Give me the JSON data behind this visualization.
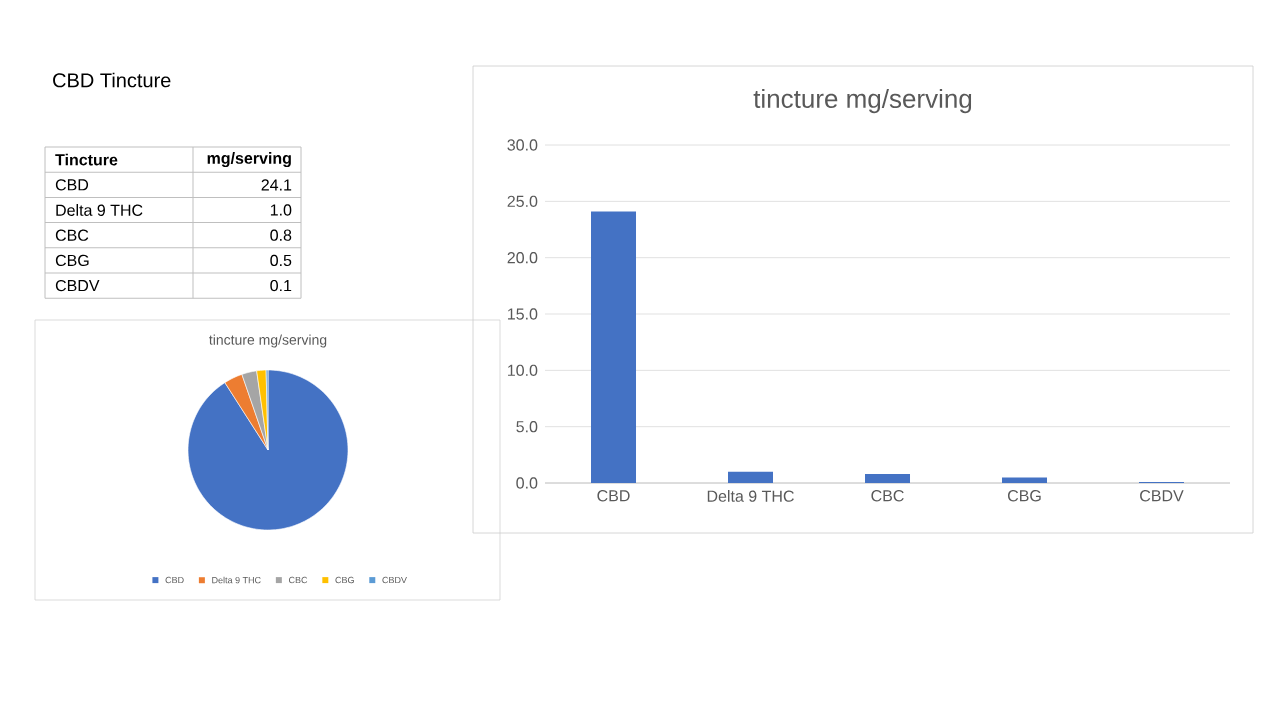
{
  "chart_data": [
    {
      "type": "other",
      "title": "CBD Tincture",
      "categories": [
        "CBD",
        "Delta 9 THC",
        "CBC",
        "CBG",
        "CBDV"
      ],
      "value_labels": [
        "24.1",
        "1.0",
        "0.8",
        "0.5",
        "0.1"
      ],
      "annotations": [
        "Tincture",
        "mg/serving"
      ]
    },
    {
      "type": "pie",
      "title": "tincture mg/serving",
      "categories": [
        "CBD",
        "Delta 9 THC",
        "CBC",
        "CBG",
        "CBDV"
      ],
      "values": [
        90.94,
        3.77,
        3.02,
        1.89,
        0.38
      ],
      "colors": [
        "#4472c4",
        "#ed7d31",
        "#a5a5a5",
        "#ffc000",
        "#5b9bd5"
      ],
      "legend": "bottom"
    },
    {
      "type": "bar",
      "title": "tincture mg/serving",
      "categories": [
        "CBD",
        "Delta 9 THC",
        "CBC",
        "CBG",
        "CBDV"
      ],
      "values": [
        24.1,
        1.0,
        0.8,
        0.5,
        0.1
      ],
      "color": "#4472c4",
      "ylim": [
        0,
        30
      ],
      "yticks": [
        {
          "value": 0,
          "label": "0.0"
        },
        {
          "value": 5,
          "label": "5.0"
        },
        {
          "value": 10,
          "label": "10.0"
        },
        {
          "value": 15,
          "label": "15.0"
        },
        {
          "value": 20,
          "label": "20.0"
        },
        {
          "value": 25,
          "label": "25.0"
        },
        {
          "value": 30,
          "label": "30.0"
        }
      ],
      "grid": "y"
    }
  ]
}
